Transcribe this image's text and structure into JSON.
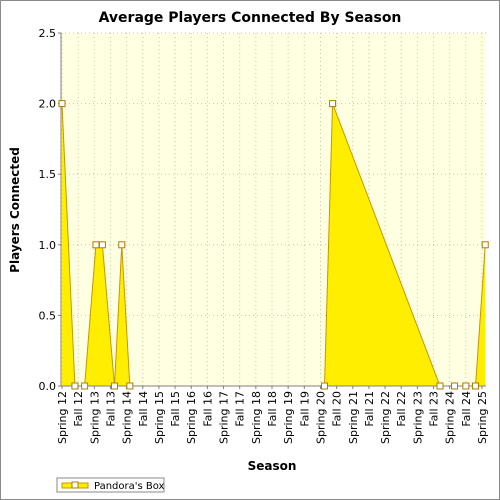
{
  "chart_data": {
    "type": "area",
    "title": "Average Players Connected By Season",
    "xlabel": "Season",
    "ylabel": "Players Connected",
    "categories": [
      "Spring 12",
      "Fall 12",
      "Spring 13",
      "Fall 13",
      "Spring 14",
      "Fall 14",
      "Spring 15",
      "Fall 15",
      "Spring 16",
      "Fall 16",
      "Spring 17",
      "Fall 17",
      "Spring 18",
      "Fall 18",
      "Spring 19",
      "Fall 19",
      "Spring 20",
      "Fall 20",
      "Spring 21",
      "Fall 21",
      "Spring 22",
      "Fall 22",
      "Spring 23",
      "Fall 23",
      "Spring 24",
      "Fall 24",
      "Spring 25"
    ],
    "x": [
      0,
      0.8,
      1.4,
      2.1,
      2.5,
      3.25,
      3.7,
      4.2,
      16.25,
      16.75,
      23.4,
      24.3,
      25,
      25.6,
      26.2
    ],
    "x_note_units": "category index (0 = Spring 12, 26 = Spring 25)",
    "series": [
      {
        "name": "Pandora's Box",
        "values": [
          2,
          0,
          0,
          1,
          1,
          0,
          1,
          0,
          0,
          2,
          0,
          0,
          0,
          0,
          1
        ]
      }
    ],
    "ylim": [
      0,
      2.5
    ],
    "yticks": [
      "0.0",
      "0.5",
      "1.0",
      "1.5",
      "2.0",
      "2.5"
    ],
    "grid": true,
    "legend": "bottom-left",
    "colors": {
      "fill": "#ffee00",
      "fill_dark": "#f2c800",
      "stroke": "#c79600",
      "marker_stroke": "#b07a00",
      "plot_bg": "#ffffe2",
      "grid": "#c8c8a0"
    }
  }
}
